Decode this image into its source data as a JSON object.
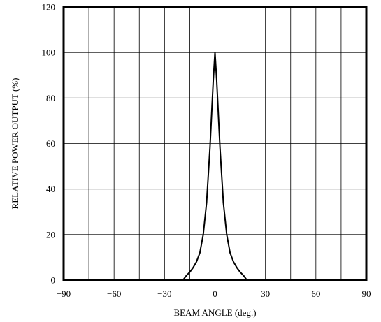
{
  "chart_data": {
    "type": "line",
    "title": "",
    "xlabel": "BEAM ANGLE (deg.)",
    "ylabel": "RELATIVE POWER OUTPUT (%)",
    "xlim": [
      -90,
      90
    ],
    "ylim": [
      0,
      120
    ],
    "x_ticks": [
      -90,
      -60,
      -30,
      0,
      30,
      60,
      90
    ],
    "x_tick_labels": [
      "−90",
      "−60",
      "−30",
      "0",
      "30",
      "60",
      "90"
    ],
    "y_ticks": [
      0,
      20,
      40,
      60,
      80,
      100,
      120
    ],
    "y_tick_labels": [
      "0",
      "20",
      "40",
      "60",
      "80",
      "100",
      "120"
    ],
    "x_grid_step": 15,
    "y_grid_step": 20,
    "grid": true,
    "series": [
      {
        "x": [
          -19,
          -17,
          -15,
          -13,
          -11,
          -9,
          -7,
          -5,
          -3,
          -1,
          0,
          1,
          3,
          5,
          7,
          9,
          11,
          13,
          15,
          17,
          19
        ],
        "y": [
          0,
          2,
          3.5,
          5.5,
          8,
          12,
          20,
          34,
          58,
          88,
          100,
          88,
          58,
          34,
          20,
          12,
          8,
          5.5,
          3.5,
          2,
          0
        ]
      }
    ]
  }
}
